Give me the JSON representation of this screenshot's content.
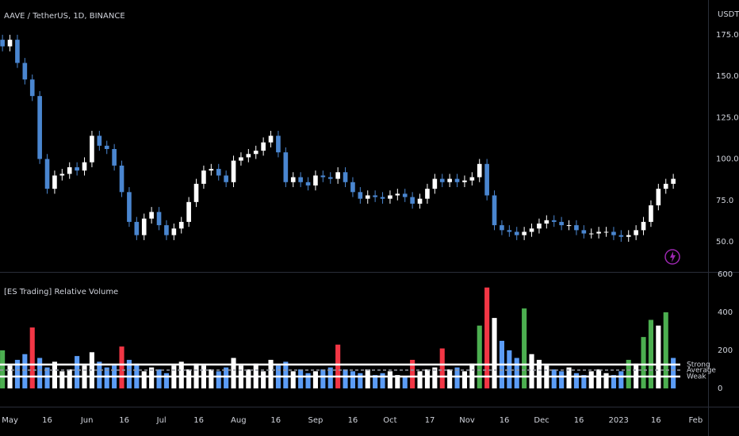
{
  "chart_data": [
    {
      "type": "candlestick",
      "title": "AAVE / TetherUS, 1D, BINANCE",
      "y_axis_label": "USDT",
      "x": [
        -2,
        1,
        4,
        7,
        10,
        13,
        16,
        19,
        22,
        25,
        28,
        31,
        34,
        37,
        40,
        43,
        46,
        49,
        52,
        55,
        58,
        61,
        64,
        67,
        70,
        73,
        76,
        79,
        82,
        85,
        88,
        91,
        94,
        97,
        100,
        103,
        106,
        109,
        112,
        115,
        118,
        121,
        124,
        127,
        130,
        133,
        136,
        139,
        142,
        145,
        148,
        151,
        154,
        157,
        160,
        163,
        166,
        169,
        172,
        175,
        178,
        181,
        184,
        187,
        190,
        193,
        196,
        199,
        202,
        205,
        208,
        211,
        214,
        217,
        220,
        223,
        226,
        229,
        232,
        235,
        238,
        241,
        244,
        247,
        250,
        253,
        256,
        259,
        262,
        265,
        268
      ],
      "open": [
        172,
        168,
        172,
        158,
        148,
        138,
        100,
        82,
        90,
        91,
        95,
        93,
        98,
        114,
        108,
        106,
        96,
        80,
        62,
        54,
        64,
        68,
        60,
        54,
        58,
        62,
        74,
        85,
        93,
        94,
        90,
        86,
        99,
        101,
        103,
        105,
        110,
        114,
        104,
        86,
        89,
        86,
        84,
        90,
        89,
        88,
        92,
        86,
        80,
        76,
        78,
        77,
        76,
        78,
        79,
        77,
        73,
        76,
        82,
        88,
        86,
        88,
        86,
        87,
        89,
        97,
        78,
        60,
        57,
        56,
        54,
        56,
        58,
        61,
        63,
        62,
        60,
        60,
        57,
        55,
        55,
        56,
        56,
        54,
        53,
        54,
        57,
        62,
        72,
        82,
        85
      ],
      "high": [
        175,
        175,
        175,
        161,
        151,
        141,
        103,
        93,
        94,
        98,
        98,
        101,
        117,
        117,
        111,
        109,
        99,
        83,
        65,
        67,
        71,
        71,
        63,
        61,
        65,
        77,
        88,
        96,
        97,
        97,
        93,
        102,
        104,
        106,
        108,
        113,
        117,
        117,
        107,
        92,
        92,
        89,
        93,
        93,
        92,
        95,
        95,
        89,
        83,
        81,
        81,
        80,
        81,
        82,
        82,
        80,
        79,
        85,
        91,
        91,
        91,
        91,
        90,
        92,
        100,
        100,
        81,
        63,
        60,
        59,
        59,
        61,
        64,
        66,
        66,
        65,
        63,
        63,
        60,
        58,
        59,
        59,
        59,
        57,
        57,
        60,
        65,
        75,
        85,
        88,
        91
      ],
      "low": [
        165,
        165,
        155,
        145,
        135,
        97,
        79,
        79,
        87,
        88,
        90,
        90,
        95,
        105,
        103,
        93,
        77,
        59,
        51,
        51,
        61,
        57,
        51,
        51,
        55,
        59,
        71,
        82,
        90,
        87,
        83,
        83,
        96,
        98,
        100,
        102,
        107,
        101,
        83,
        83,
        83,
        81,
        81,
        86,
        85,
        85,
        83,
        77,
        73,
        73,
        74,
        73,
        73,
        75,
        74,
        70,
        70,
        73,
        79,
        83,
        83,
        83,
        83,
        84,
        86,
        75,
        57,
        54,
        53,
        51,
        51,
        53,
        55,
        58,
        59,
        57,
        57,
        54,
        52,
        52,
        52,
        53,
        51,
        50,
        50,
        51,
        54,
        59,
        69,
        79,
        82
      ],
      "close": [
        168,
        172,
        158,
        148,
        138,
        100,
        82,
        90,
        91,
        95,
        93,
        98,
        114,
        108,
        106,
        96,
        80,
        62,
        54,
        64,
        68,
        60,
        54,
        58,
        62,
        74,
        85,
        93,
        94,
        90,
        86,
        99,
        101,
        103,
        105,
        110,
        114,
        104,
        86,
        89,
        86,
        84,
        90,
        89,
        88,
        92,
        86,
        80,
        76,
        78,
        77,
        76,
        78,
        79,
        77,
        73,
        76,
        82,
        88,
        86,
        88,
        86,
        87,
        89,
        97,
        78,
        60,
        57,
        56,
        54,
        56,
        58,
        61,
        63,
        62,
        60,
        60,
        57,
        55,
        55,
        56,
        56,
        54,
        53,
        54,
        57,
        62,
        72,
        82,
        85,
        88
      ],
      "up_color": "#ffffff",
      "down_color": "#4a86d0",
      "xlim": [
        -3,
        282
      ],
      "xticks": [
        {
          "value": 1,
          "label": "May"
        },
        {
          "value": 16,
          "label": "16"
        },
        {
          "value": 32,
          "label": "Jun"
        },
        {
          "value": 47,
          "label": "16"
        },
        {
          "value": 62,
          "label": "Jul"
        },
        {
          "value": 77,
          "label": "16"
        },
        {
          "value": 93,
          "label": "Aug"
        },
        {
          "value": 108,
          "label": "16"
        },
        {
          "value": 124,
          "label": "Sep"
        },
        {
          "value": 139,
          "label": "16"
        },
        {
          "value": 154,
          "label": "Oct"
        },
        {
          "value": 170,
          "label": "17"
        },
        {
          "value": 185,
          "label": "Nov"
        },
        {
          "value": 200,
          "label": "16"
        },
        {
          "value": 215,
          "label": "Dec"
        },
        {
          "value": 230,
          "label": "16"
        },
        {
          "value": 246,
          "label": "2023"
        },
        {
          "value": 261,
          "label": "16"
        },
        {
          "value": 277,
          "label": "Feb"
        }
      ],
      "ylim": [
        31.8,
        196
      ],
      "yticks": [
        {
          "value": 50,
          "label": "50.0"
        },
        {
          "value": 75,
          "label": "75.0"
        },
        {
          "value": 100,
          "label": "100.0"
        },
        {
          "value": 125,
          "label": "125.0"
        },
        {
          "value": 150,
          "label": "150.0"
        },
        {
          "value": 175,
          "label": "175.0"
        }
      ]
    },
    {
      "type": "bar",
      "title": "[ES Trading] Relative Volume",
      "values": [
        200,
        120,
        150,
        180,
        320,
        160,
        110,
        140,
        90,
        100,
        170,
        120,
        190,
        140,
        110,
        120,
        220,
        150,
        130,
        90,
        110,
        100,
        80,
        120,
        140,
        100,
        130,
        120,
        100,
        90,
        110,
        160,
        120,
        100,
        130,
        90,
        150,
        120,
        140,
        90,
        100,
        80,
        90,
        100,
        110,
        230,
        100,
        90,
        80,
        100,
        70,
        80,
        90,
        70,
        60,
        150,
        90,
        100,
        110,
        210,
        100,
        110,
        90,
        130,
        330,
        530,
        370,
        250,
        200,
        160,
        420,
        180,
        150,
        120,
        100,
        90,
        110,
        80,
        70,
        90,
        100,
        80,
        70,
        90,
        150,
        130,
        270,
        360,
        330,
        400,
        160
      ],
      "colors": [
        "#4caf50",
        "#ffffff",
        "#5b9cf6",
        "#5b9cf6",
        "#f23645",
        "#5b9cf6",
        "#5b9cf6",
        "#ffffff",
        "#ffffff",
        "#ffffff",
        "#5b9cf6",
        "#ffffff",
        "#ffffff",
        "#5b9cf6",
        "#5b9cf6",
        "#5b9cf6",
        "#f23645",
        "#5b9cf6",
        "#5b9cf6",
        "#ffffff",
        "#ffffff",
        "#5b9cf6",
        "#5b9cf6",
        "#ffffff",
        "#ffffff",
        "#ffffff",
        "#ffffff",
        "#ffffff",
        "#ffffff",
        "#5b9cf6",
        "#5b9cf6",
        "#ffffff",
        "#ffffff",
        "#ffffff",
        "#ffffff",
        "#ffffff",
        "#ffffff",
        "#5b9cf6",
        "#5b9cf6",
        "#ffffff",
        "#5b9cf6",
        "#5b9cf6",
        "#ffffff",
        "#5b9cf6",
        "#5b9cf6",
        "#f23645",
        "#5b9cf6",
        "#5b9cf6",
        "#5b9cf6",
        "#ffffff",
        "#5b9cf6",
        "#5b9cf6",
        "#ffffff",
        "#ffffff",
        "#5b9cf6",
        "#f23645",
        "#ffffff",
        "#ffffff",
        "#ffffff",
        "#f23645",
        "#ffffff",
        "#5b9cf6",
        "#ffffff",
        "#ffffff",
        "#4caf50",
        "#f23645",
        "#ffffff",
        "#5b9cf6",
        "#5b9cf6",
        "#5b9cf6",
        "#4caf50",
        "#ffffff",
        "#ffffff",
        "#ffffff",
        "#5b9cf6",
        "#5b9cf6",
        "#ffffff",
        "#5b9cf6",
        "#5b9cf6",
        "#ffffff",
        "#ffffff",
        "#ffffff",
        "#5b9cf6",
        "#5b9cf6",
        "#4caf50",
        "#ffffff",
        "#4caf50",
        "#4caf50",
        "#ffffff",
        "#4caf50",
        "#5b9cf6"
      ],
      "ylim": [
        -96,
        612
      ],
      "yticks": [
        0,
        200,
        400,
        600
      ],
      "levels": [
        {
          "label": "Strong",
          "value": 125
        },
        {
          "label": "Average",
          "value": 96
        },
        {
          "label": "Weak",
          "value": 62
        }
      ]
    }
  ]
}
